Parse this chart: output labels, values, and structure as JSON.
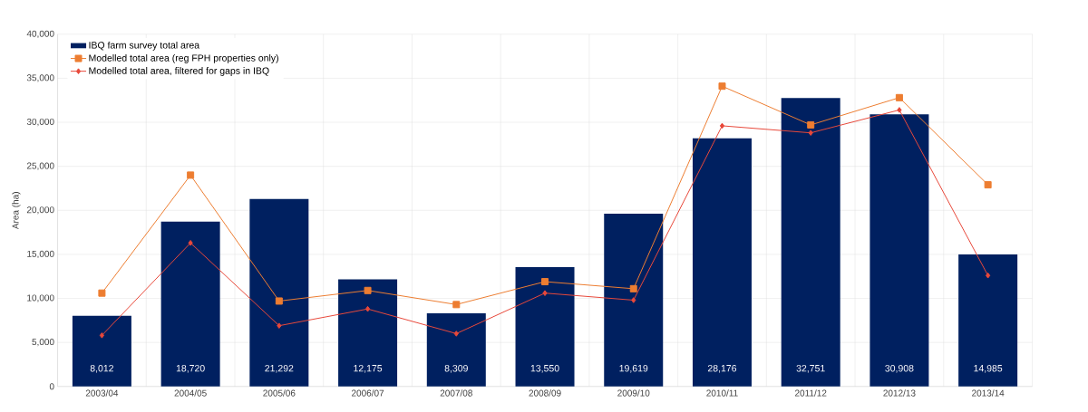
{
  "chart_data": {
    "type": "bar",
    "ylabel": "Area (ha)",
    "categories": [
      "2003/04",
      "2004/05",
      "2005/06",
      "2006/07",
      "2007/08",
      "2008/09",
      "2009/10",
      "2010/11",
      "2011/12",
      "2012/13",
      "2013/14"
    ],
    "series": [
      {
        "name": "IBQ farm survey total area",
        "color": "#002060",
        "values": [
          8012,
          18720,
          21292,
          12175,
          8309,
          13550,
          19619,
          28176,
          32751,
          30908,
          14985
        ],
        "value_labels": [
          "8,012",
          "18,720",
          "21,292",
          "12,175",
          "8,309",
          "13,550",
          "19,619",
          "28,176",
          "32,751",
          "30,908",
          "14,985"
        ]
      },
      {
        "name": "Modelled total area (reg FPH properties only)",
        "type": "line",
        "marker": "square",
        "color": "#ed7d31",
        "values": [
          10600,
          24000,
          9700,
          10900,
          9300,
          11900,
          11100,
          34100,
          29700,
          32800,
          22900
        ]
      },
      {
        "name": "Modelled total area, filtered for gaps in IBQ",
        "type": "line",
        "marker": "diamond",
        "color": "#e8483a",
        "values": [
          5800,
          16300,
          6900,
          8800,
          6000,
          10600,
          9800,
          29600,
          28800,
          31400,
          12600
        ]
      }
    ],
    "ylim": [
      0,
      40000
    ],
    "yticks": [
      0,
      {
        "value": 5000,
        "label": "5,000"
      },
      {
        "value": 10000,
        "label": "10,000"
      },
      {
        "value": 15000,
        "label": "15,000"
      },
      {
        "value": 20000,
        "label": "20,000"
      },
      {
        "value": 25000,
        "label": "25,000"
      },
      {
        "value": 30000,
        "label": "30,000"
      },
      {
        "value": 35000,
        "label": "35,000"
      },
      {
        "value": 40000,
        "label": "40,000"
      }
    ],
    "grid": true,
    "legend": "top left"
  }
}
